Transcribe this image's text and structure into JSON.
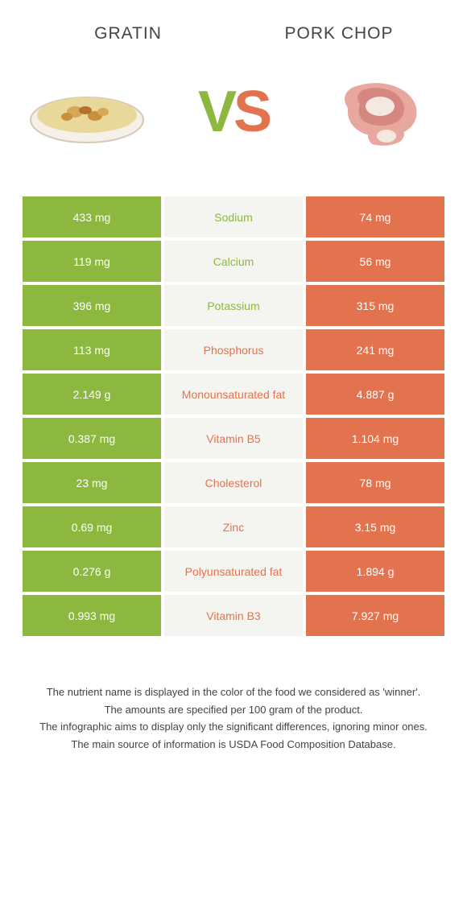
{
  "header": {
    "left_title": "Gratin",
    "right_title": "Pork chop",
    "vs_v": "V",
    "vs_s": "S"
  },
  "colors": {
    "green": "#8cb83f",
    "orange": "#e3734e",
    "mid_bg": "#f4f4f0",
    "white": "#ffffff"
  },
  "rows": [
    {
      "left": "433 mg",
      "nutrient": "Sodium",
      "right": "74 mg",
      "winner": "green"
    },
    {
      "left": "119 mg",
      "nutrient": "Calcium",
      "right": "56 mg",
      "winner": "green"
    },
    {
      "left": "396 mg",
      "nutrient": "Potassium",
      "right": "315 mg",
      "winner": "green"
    },
    {
      "left": "113 mg",
      "nutrient": "Phosphorus",
      "right": "241 mg",
      "winner": "orange"
    },
    {
      "left": "2.149 g",
      "nutrient": "Monounsaturated fat",
      "right": "4.887 g",
      "winner": "orange"
    },
    {
      "left": "0.387 mg",
      "nutrient": "Vitamin B5",
      "right": "1.104 mg",
      "winner": "orange"
    },
    {
      "left": "23 mg",
      "nutrient": "Cholesterol",
      "right": "78 mg",
      "winner": "orange"
    },
    {
      "left": "0.69 mg",
      "nutrient": "Zinc",
      "right": "3.15 mg",
      "winner": "orange"
    },
    {
      "left": "0.276 g",
      "nutrient": "Polyunsaturated fat",
      "right": "1.894 g",
      "winner": "orange"
    },
    {
      "left": "0.993 mg",
      "nutrient": "Vitamin B3",
      "right": "7.927 mg",
      "winner": "orange"
    }
  ],
  "footer": {
    "line1": "The nutrient name is displayed in the color of the food we considered as 'winner'.",
    "line2": "The amounts are specified per 100 gram of the product.",
    "line3": "The infographic aims to display only the significant differences, ignoring minor ones.",
    "line4": "The main source of information is USDA Food Composition Database."
  }
}
